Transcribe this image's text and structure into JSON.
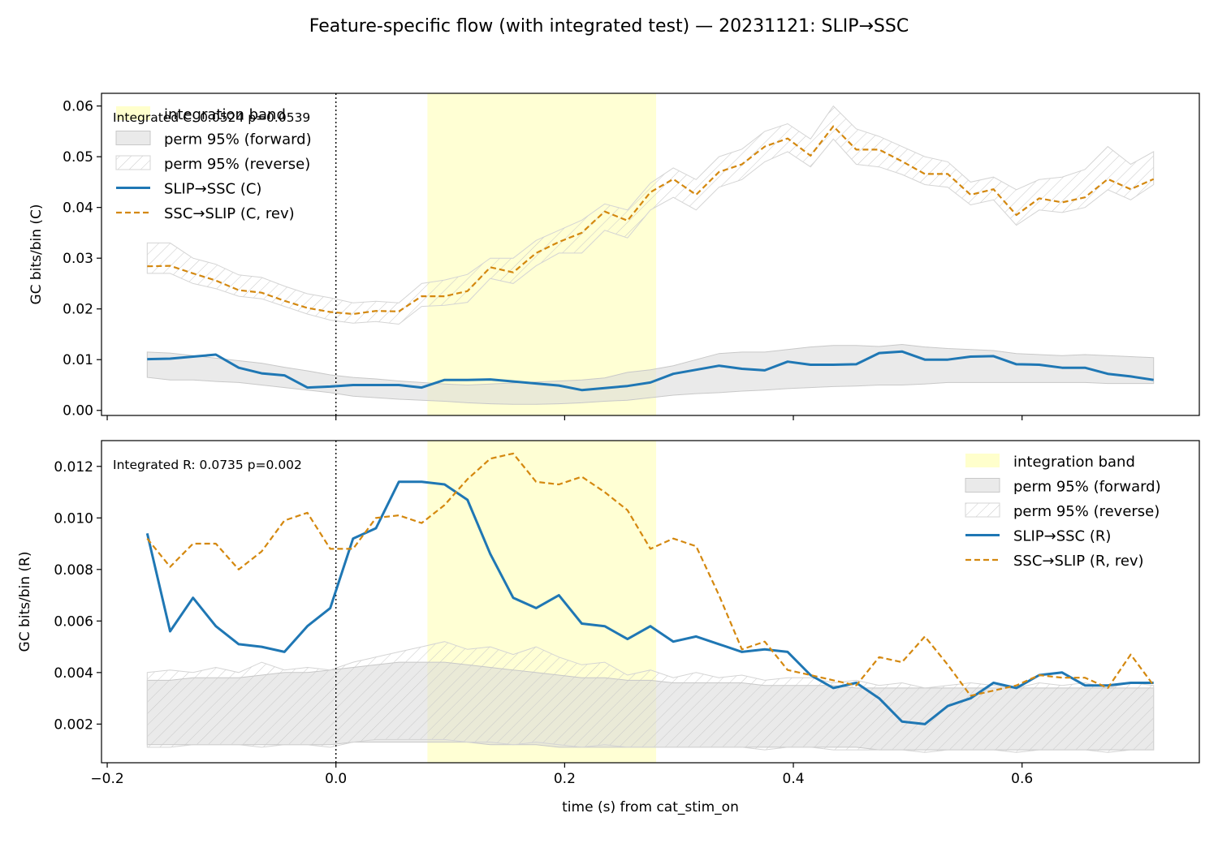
{
  "figure": {
    "title": "Feature-specific flow (with integrated test) — 20231121: SLIP→SSC",
    "xlabel": "time (s) from cat_stim_on"
  },
  "colors": {
    "forward_line": "#1f77b4",
    "reverse_line": "#d4880f",
    "band_fill": "#ffffcc",
    "perm_fill": "#d9d9d9",
    "hatch_stroke": "#c8c8c8"
  },
  "chart_data": [
    {
      "type": "line",
      "panel": "top",
      "ylabel": "GC bits/bin (C)",
      "annotation": "Integrated C: 0.0524  p=0.0539",
      "xlim": [
        -0.205,
        0.755
      ],
      "ylim": [
        -0.001,
        0.0625
      ],
      "xticks": [
        -0.2,
        0.0,
        0.2,
        0.4,
        0.6
      ],
      "xtick_labels": [],
      "yticks": [
        0.0,
        0.01,
        0.02,
        0.03,
        0.04,
        0.05,
        0.06
      ],
      "ytick_labels": [
        "0.00",
        "0.01",
        "0.02",
        "0.03",
        "0.04",
        "0.05",
        "0.06"
      ],
      "band": [
        0.08,
        0.28
      ],
      "legend_position": "upper-left",
      "legend": [
        "integration band",
        "perm 95% (forward)",
        "perm 95% (reverse)",
        "SLIP→SSC (C)",
        "SSC→SLIP (C, rev)"
      ],
      "x": [
        -0.165,
        -0.145,
        -0.125,
        -0.105,
        -0.085,
        -0.065,
        -0.045,
        -0.025,
        -0.005,
        0.015,
        0.035,
        0.055,
        0.075,
        0.095,
        0.115,
        0.135,
        0.155,
        0.175,
        0.195,
        0.215,
        0.235,
        0.255,
        0.275,
        0.295,
        0.315,
        0.335,
        0.355,
        0.375,
        0.395,
        0.415,
        0.435,
        0.455,
        0.475,
        0.495,
        0.515,
        0.535,
        0.555,
        0.575,
        0.595,
        0.615,
        0.635,
        0.655,
        0.675,
        0.695,
        0.715
      ],
      "series": [
        {
          "name": "SLIP→SSC (C)",
          "style": "solid",
          "values": [
            0.0101,
            0.0102,
            0.0106,
            0.011,
            0.0084,
            0.0073,
            0.0069,
            0.0045,
            0.0047,
            0.005,
            0.005,
            0.005,
            0.0045,
            0.006,
            0.006,
            0.0061,
            0.0057,
            0.0053,
            0.0049,
            0.004,
            0.0044,
            0.0048,
            0.0055,
            0.0072,
            0.008,
            0.0088,
            0.0082,
            0.0079,
            0.0096,
            0.009,
            0.009,
            0.0091,
            0.0113,
            0.0116,
            0.01,
            0.01,
            0.0106,
            0.0107,
            0.0091,
            0.009,
            0.0084,
            0.0084,
            0.0072,
            0.0067,
            0.006
          ]
        },
        {
          "name": "SSC→SLIP (C, rev)",
          "style": "dashed",
          "values": [
            0.0284,
            0.0285,
            0.027,
            0.0256,
            0.0237,
            0.0232,
            0.0216,
            0.0202,
            0.0194,
            0.019,
            0.0196,
            0.0195,
            0.0225,
            0.0225,
            0.0235,
            0.0282,
            0.0272,
            0.031,
            0.0332,
            0.035,
            0.0392,
            0.0374,
            0.043,
            0.0456,
            0.0425,
            0.047,
            0.0485,
            0.052,
            0.0536,
            0.0502,
            0.056,
            0.0514,
            0.0514,
            0.0491,
            0.0466,
            0.0466,
            0.0425,
            0.0436,
            0.0385,
            0.0418,
            0.041,
            0.042,
            0.0456,
            0.0436,
            0.0456
          ]
        }
      ],
      "perm_forward": {
        "lower": [
          0.0065,
          0.006,
          0.006,
          0.0057,
          0.0055,
          0.005,
          0.0045,
          0.004,
          0.0035,
          0.0028,
          0.0025,
          0.0022,
          0.002,
          0.0018,
          0.0015,
          0.0013,
          0.0012,
          0.0012,
          0.0013,
          0.0015,
          0.0018,
          0.002,
          0.0025,
          0.003,
          0.0033,
          0.0035,
          0.0038,
          0.004,
          0.0043,
          0.0045,
          0.0047,
          0.0048,
          0.005,
          0.005,
          0.0052,
          0.0055,
          0.0055,
          0.0055,
          0.0055,
          0.0055,
          0.0055,
          0.0055,
          0.0053,
          0.0053,
          0.0053
        ],
        "upper": [
          0.0115,
          0.0113,
          0.0108,
          0.0103,
          0.0098,
          0.0093,
          0.0085,
          0.0078,
          0.007,
          0.0065,
          0.0062,
          0.0058,
          0.0055,
          0.0052,
          0.005,
          0.0052,
          0.0054,
          0.0056,
          0.0058,
          0.006,
          0.0064,
          0.0075,
          0.008,
          0.0088,
          0.01,
          0.0112,
          0.0115,
          0.0115,
          0.012,
          0.0125,
          0.0128,
          0.0128,
          0.0126,
          0.013,
          0.0125,
          0.0122,
          0.012,
          0.0118,
          0.0112,
          0.011,
          0.0108,
          0.011,
          0.0108,
          0.0106,
          0.0104
        ]
      },
      "perm_reverse": {
        "lower": [
          0.027,
          0.027,
          0.025,
          0.024,
          0.0225,
          0.022,
          0.0205,
          0.019,
          0.0178,
          0.0172,
          0.0175,
          0.017,
          0.0205,
          0.0207,
          0.0213,
          0.026,
          0.025,
          0.0285,
          0.031,
          0.031,
          0.0355,
          0.034,
          0.0395,
          0.042,
          0.0395,
          0.044,
          0.0455,
          0.049,
          0.051,
          0.048,
          0.0535,
          0.0485,
          0.048,
          0.0465,
          0.0445,
          0.044,
          0.0405,
          0.0415,
          0.0365,
          0.0395,
          0.039,
          0.04,
          0.0435,
          0.0415,
          0.0445
        ],
        "upper": [
          0.033,
          0.033,
          0.03,
          0.0288,
          0.0267,
          0.0262,
          0.0245,
          0.023,
          0.0222,
          0.0212,
          0.0215,
          0.0212,
          0.025,
          0.0257,
          0.0268,
          0.03,
          0.03,
          0.0335,
          0.0355,
          0.0375,
          0.0407,
          0.0395,
          0.0448,
          0.0478,
          0.0455,
          0.05,
          0.0515,
          0.055,
          0.0565,
          0.0535,
          0.06,
          0.0555,
          0.054,
          0.052,
          0.05,
          0.049,
          0.045,
          0.046,
          0.0435,
          0.0455,
          0.046,
          0.0475,
          0.052,
          0.0485,
          0.051
        ]
      }
    },
    {
      "type": "line",
      "panel": "bottom",
      "ylabel": "GC bits/bin (R)",
      "annotation": "Integrated R: 0.0735  p=0.002",
      "xlim": [
        -0.205,
        0.755
      ],
      "ylim": [
        0.0005,
        0.013
      ],
      "xticks": [
        -0.2,
        0.0,
        0.2,
        0.4,
        0.6
      ],
      "xtick_labels": [
        "−0.2",
        "0.0",
        "0.2",
        "0.4",
        "0.6"
      ],
      "yticks": [
        0.002,
        0.004,
        0.006,
        0.008,
        0.01,
        0.012
      ],
      "ytick_labels": [
        "0.002",
        "0.004",
        "0.006",
        "0.008",
        "0.010",
        "0.012"
      ],
      "band": [
        0.08,
        0.28
      ],
      "legend_position": "upper-right",
      "legend": [
        "integration band",
        "perm 95% (forward)",
        "perm 95% (reverse)",
        "SLIP→SSC (R)",
        "SSC→SLIP (R, rev)"
      ],
      "x": [
        -0.165,
        -0.145,
        -0.125,
        -0.105,
        -0.085,
        -0.065,
        -0.045,
        -0.025,
        -0.005,
        0.015,
        0.035,
        0.055,
        0.075,
        0.095,
        0.115,
        0.135,
        0.155,
        0.175,
        0.195,
        0.215,
        0.235,
        0.255,
        0.275,
        0.295,
        0.315,
        0.335,
        0.355,
        0.375,
        0.395,
        0.415,
        0.435,
        0.455,
        0.475,
        0.495,
        0.515,
        0.535,
        0.555,
        0.575,
        0.595,
        0.615,
        0.635,
        0.655,
        0.675,
        0.695,
        0.715
      ],
      "series": [
        {
          "name": "SLIP→SSC (R)",
          "style": "solid",
          "values": [
            0.0094,
            0.0056,
            0.0069,
            0.0058,
            0.0051,
            0.005,
            0.0048,
            0.0058,
            0.0065,
            0.0092,
            0.0096,
            0.0114,
            0.0114,
            0.0113,
            0.0107,
            0.0086,
            0.0069,
            0.0065,
            0.007,
            0.0059,
            0.0058,
            0.0053,
            0.0058,
            0.0052,
            0.0054,
            0.0051,
            0.0048,
            0.0049,
            0.0048,
            0.0039,
            0.0034,
            0.0036,
            0.003,
            0.0021,
            0.002,
            0.0027,
            0.003,
            0.0036,
            0.0034,
            0.0039,
            0.004,
            0.0035,
            0.0035,
            0.0036,
            0.0036
          ]
        },
        {
          "name": "SSC→SLIP (R, rev)",
          "style": "dashed",
          "values": [
            0.0092,
            0.0081,
            0.009,
            0.009,
            0.008,
            0.0087,
            0.0099,
            0.0102,
            0.0088,
            0.0088,
            0.01,
            0.0101,
            0.0098,
            0.0105,
            0.0115,
            0.0123,
            0.0125,
            0.0114,
            0.0113,
            0.0116,
            0.011,
            0.0103,
            0.0088,
            0.0092,
            0.0089,
            0.007,
            0.0049,
            0.0052,
            0.0041,
            0.0039,
            0.0037,
            0.0035,
            0.0046,
            0.0044,
            0.0054,
            0.0043,
            0.0031,
            0.0033,
            0.0035,
            0.0039,
            0.0038,
            0.0038,
            0.0034,
            0.0047,
            0.0035
          ]
        }
      ],
      "perm_forward": {
        "lower": [
          0.0012,
          0.0012,
          0.0012,
          0.0012,
          0.0012,
          0.0012,
          0.0012,
          0.0012,
          0.0012,
          0.0013,
          0.0013,
          0.0013,
          0.0013,
          0.0013,
          0.0013,
          0.0012,
          0.0012,
          0.0012,
          0.0011,
          0.0011,
          0.0011,
          0.0011,
          0.0011,
          0.0011,
          0.0011,
          0.0011,
          0.0011,
          0.0011,
          0.0011,
          0.0011,
          0.0011,
          0.0011,
          0.001,
          0.001,
          0.001,
          0.001,
          0.001,
          0.001,
          0.001,
          0.001,
          0.001,
          0.001,
          0.001,
          0.001,
          0.001
        ],
        "upper": [
          0.0037,
          0.0037,
          0.0038,
          0.0038,
          0.0038,
          0.0039,
          0.004,
          0.004,
          0.0041,
          0.0042,
          0.0043,
          0.0044,
          0.0044,
          0.0044,
          0.0043,
          0.0042,
          0.0041,
          0.004,
          0.0039,
          0.0038,
          0.0038,
          0.0037,
          0.0037,
          0.0036,
          0.0036,
          0.0036,
          0.0036,
          0.0035,
          0.0035,
          0.0035,
          0.0035,
          0.0034,
          0.0034,
          0.0034,
          0.0034,
          0.0034,
          0.0034,
          0.0034,
          0.0034,
          0.0034,
          0.0034,
          0.0034,
          0.0034,
          0.0034,
          0.0034
        ]
      },
      "perm_reverse": {
        "lower": [
          0.0011,
          0.0011,
          0.0012,
          0.0012,
          0.0012,
          0.0011,
          0.0012,
          0.0012,
          0.0011,
          0.0013,
          0.0014,
          0.0014,
          0.0014,
          0.0014,
          0.0013,
          0.0013,
          0.0012,
          0.0013,
          0.0012,
          0.0011,
          0.0012,
          0.0011,
          0.0011,
          0.0011,
          0.0011,
          0.0011,
          0.0011,
          0.001,
          0.0011,
          0.0011,
          0.001,
          0.001,
          0.001,
          0.001,
          0.0009,
          0.001,
          0.001,
          0.001,
          0.0009,
          0.001,
          0.001,
          0.001,
          0.0009,
          0.001,
          0.001
        ],
        "upper": [
          0.004,
          0.0041,
          0.004,
          0.0042,
          0.004,
          0.0044,
          0.0041,
          0.0042,
          0.0041,
          0.0044,
          0.0046,
          0.0048,
          0.005,
          0.0052,
          0.0049,
          0.005,
          0.0047,
          0.005,
          0.0046,
          0.0043,
          0.0044,
          0.0039,
          0.0041,
          0.0038,
          0.004,
          0.0038,
          0.0039,
          0.0037,
          0.0038,
          0.0038,
          0.0036,
          0.0037,
          0.0035,
          0.0036,
          0.0034,
          0.0035,
          0.0036,
          0.0035,
          0.0034,
          0.0036,
          0.0035,
          0.0036,
          0.0034,
          0.0036,
          0.0035
        ]
      }
    }
  ]
}
